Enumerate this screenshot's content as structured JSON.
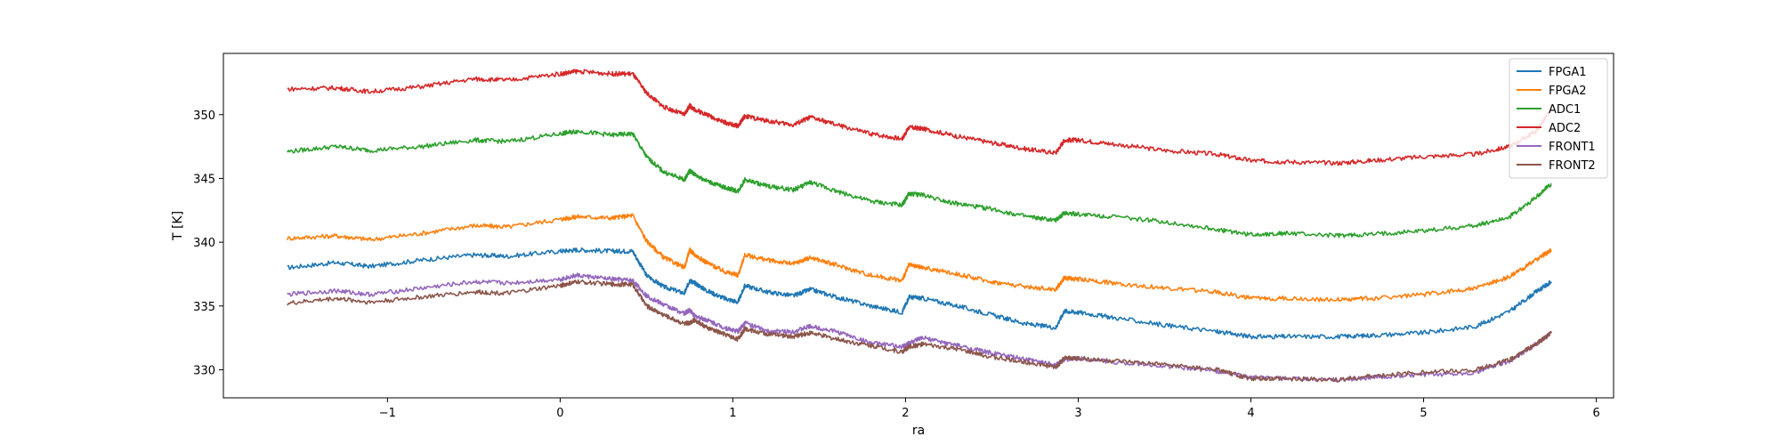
{
  "chart_data": {
    "type": "line",
    "xlabel": "ra",
    "ylabel": "T [K]",
    "xlim": [
      -1.95,
      6.1
    ],
    "ylim": [
      327.8,
      354.8
    ],
    "xticks": [
      -1,
      0,
      1,
      2,
      3,
      4,
      5,
      6
    ],
    "yticks": [
      330,
      335,
      340,
      345,
      350
    ],
    "legend_position": "top-right",
    "grid": false,
    "x": [
      -1.58,
      -1.3,
      -1.1,
      -0.8,
      -0.5,
      -0.3,
      0.0,
      0.1,
      0.3,
      0.42,
      0.5,
      0.6,
      0.72,
      0.75,
      0.78,
      0.85,
      0.95,
      1.03,
      1.07,
      1.2,
      1.35,
      1.45,
      1.6,
      1.8,
      1.98,
      2.02,
      2.1,
      2.3,
      2.5,
      2.7,
      2.87,
      2.92,
      3.0,
      3.2,
      3.5,
      3.8,
      4.0,
      4.2,
      4.5,
      4.7,
      5.0,
      5.3,
      5.5,
      5.65,
      5.74
    ],
    "series": [
      {
        "name": "FPGA1",
        "color": "#1f77b4",
        "values": [
          338.0,
          338.4,
          338.1,
          338.6,
          339.0,
          338.9,
          339.3,
          339.4,
          339.3,
          339.3,
          337.4,
          336.5,
          336.0,
          337.0,
          336.8,
          336.2,
          335.6,
          335.3,
          336.6,
          336.1,
          335.8,
          336.3,
          335.7,
          335.0,
          334.5,
          335.7,
          335.6,
          335.0,
          334.3,
          333.6,
          333.3,
          334.6,
          334.5,
          334.1,
          333.5,
          333.0,
          332.6,
          332.6,
          332.6,
          332.7,
          332.9,
          333.4,
          334.6,
          336.1,
          336.9
        ]
      },
      {
        "name": "FPGA2",
        "color": "#ff7f0e",
        "values": [
          340.3,
          340.5,
          340.2,
          340.7,
          341.3,
          341.2,
          341.8,
          342.0,
          341.9,
          342.1,
          340.1,
          338.8,
          338.0,
          339.4,
          339.0,
          338.4,
          337.7,
          337.4,
          339.0,
          338.6,
          338.3,
          338.8,
          338.2,
          337.4,
          337.0,
          338.2,
          338.0,
          337.5,
          336.9,
          336.5,
          336.3,
          337.2,
          337.1,
          336.8,
          336.4,
          336.1,
          335.6,
          335.6,
          335.5,
          335.6,
          335.9,
          336.4,
          337.3,
          338.6,
          339.4
        ]
      },
      {
        "name": "ADC1",
        "color": "#2ca02c",
        "values": [
          347.1,
          347.5,
          347.2,
          347.5,
          348.0,
          347.9,
          348.5,
          348.7,
          348.4,
          348.5,
          346.7,
          345.5,
          344.9,
          345.6,
          345.3,
          344.8,
          344.3,
          344.0,
          344.9,
          344.4,
          344.1,
          344.7,
          344.0,
          343.2,
          342.9,
          343.8,
          343.7,
          343.0,
          342.6,
          342.0,
          341.7,
          342.3,
          342.2,
          342.0,
          341.6,
          341.0,
          340.6,
          340.7,
          340.5,
          340.6,
          340.9,
          341.3,
          342.0,
          343.5,
          344.6
        ]
      },
      {
        "name": "ADC2",
        "color": "#d62728",
        "values": [
          352.0,
          352.1,
          351.8,
          352.2,
          352.8,
          352.7,
          353.2,
          353.4,
          353.2,
          353.2,
          351.7,
          350.6,
          350.0,
          350.7,
          350.4,
          350.0,
          349.4,
          349.1,
          349.9,
          349.5,
          349.2,
          349.8,
          349.2,
          348.5,
          348.1,
          349.0,
          348.9,
          348.3,
          347.8,
          347.3,
          347.0,
          348.0,
          348.0,
          347.7,
          347.2,
          346.9,
          346.4,
          346.3,
          346.2,
          346.4,
          346.7,
          346.9,
          347.5,
          348.7,
          350.4
        ]
      },
      {
        "name": "FRONT1",
        "color": "#9467bd",
        "values": [
          335.9,
          336.2,
          335.9,
          336.4,
          336.9,
          336.8,
          337.1,
          337.4,
          337.1,
          337.0,
          335.8,
          335.1,
          334.4,
          334.7,
          334.2,
          333.9,
          333.3,
          333.0,
          333.7,
          333.0,
          333.0,
          333.4,
          333.0,
          332.1,
          331.8,
          332.1,
          332.5,
          331.9,
          331.3,
          330.8,
          330.4,
          330.8,
          330.9,
          330.6,
          330.3,
          329.9,
          329.4,
          329.3,
          329.2,
          329.4,
          329.6,
          329.8,
          330.7,
          332.0,
          332.9
        ]
      },
      {
        "name": "FRONT2",
        "color": "#8c564b",
        "values": [
          335.2,
          335.6,
          335.3,
          335.7,
          336.1,
          336.0,
          336.6,
          336.9,
          336.7,
          336.7,
          335.0,
          334.3,
          333.6,
          333.7,
          333.9,
          333.3,
          332.8,
          332.4,
          333.2,
          332.8,
          332.6,
          332.9,
          332.4,
          331.9,
          331.4,
          331.8,
          332.0,
          331.6,
          331.0,
          330.6,
          330.2,
          330.9,
          330.9,
          330.7,
          330.4,
          330.0,
          329.3,
          329.3,
          329.2,
          329.5,
          329.8,
          330.0,
          330.8,
          332.0,
          332.9
        ]
      }
    ]
  }
}
